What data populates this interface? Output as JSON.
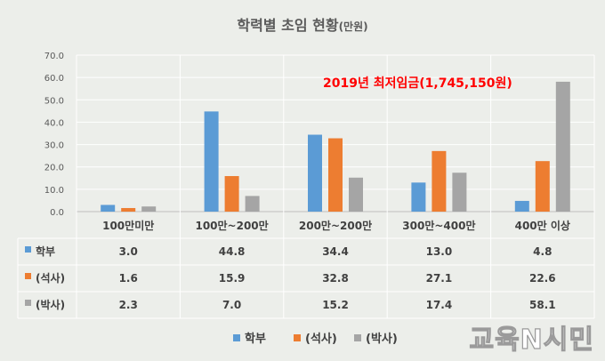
{
  "chart_data": {
    "type": "bar",
    "title": "학력별 초임 현황",
    "title_unit": "(만원)",
    "categories": [
      "100만미만",
      "100만~200만",
      "200만~200만",
      "300만~400만",
      "400만 이상"
    ],
    "series": [
      {
        "name": "학부",
        "display_name": "학부",
        "color": "#5b9bd5",
        "values": [
          3.0,
          44.8,
          34.4,
          13.0,
          4.8
        ],
        "labels": [
          "3.0",
          "44.8",
          "34.4",
          "13.0",
          "4.8"
        ]
      },
      {
        "name": "석사",
        "display_name": "(석사)",
        "color": "#ed7d31",
        "values": [
          1.6,
          15.9,
          32.8,
          27.1,
          22.6
        ],
        "labels": [
          "1.6",
          "15.9",
          "32.8",
          "27.1",
          "22.6"
        ]
      },
      {
        "name": "박사",
        "display_name": "(박사)",
        "color": "#a5a5a5",
        "values": [
          2.3,
          7.0,
          15.2,
          17.4,
          58.1
        ],
        "labels": [
          "2.3",
          "7.0",
          "15.2",
          "17.4",
          "58.1"
        ]
      }
    ],
    "ylim": [
      0,
      70
    ],
    "yticks": [
      "0.0",
      "10.0",
      "20.0",
      "30.0",
      "40.0",
      "50.0",
      "60.0",
      "70.0"
    ],
    "grid": true,
    "data_table": true,
    "legend_position": "bottom",
    "annotation": "2019년 최저임금(1,745,150원)"
  },
  "watermark": "교육N시민"
}
